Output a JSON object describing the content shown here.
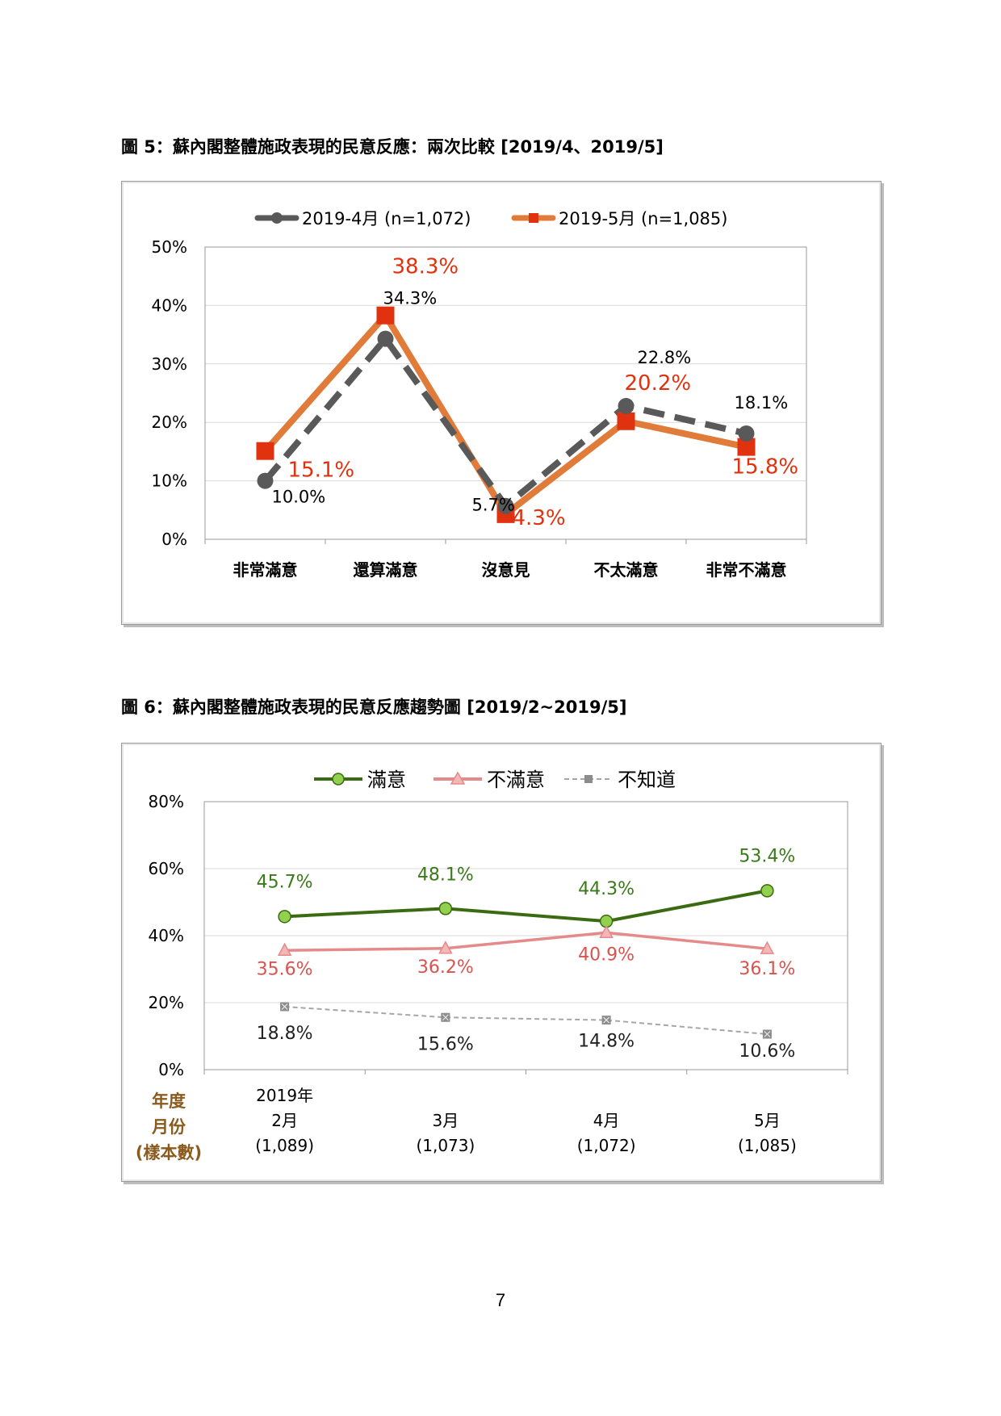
{
  "figure5": {
    "title": "圖 5：蘇內閣整體施政表現的民意反應：兩次比較 [2019/4、2019/5]"
  },
  "figure6": {
    "title": "圖 6：蘇內閣整體施政表現的民意反應趨勢圖 [2019/2~2019/5]"
  },
  "page_number": "7",
  "chart_data": [
    {
      "type": "line",
      "categories": [
        "非常滿意",
        "還算滿意",
        "沒意見",
        "不太滿意",
        "非常不滿意"
      ],
      "series": [
        {
          "name": "2019-4月 (n=1,072)",
          "values": [
            10.0,
            34.3,
            5.7,
            22.8,
            18.1
          ],
          "labels": [
            "10.0%",
            "34.3%",
            "5.7%",
            "22.8%",
            "18.1%"
          ],
          "color": "#595959",
          "dash": true,
          "marker": "circle"
        },
        {
          "name": "2019-5月 (n=1,085)",
          "values": [
            15.1,
            38.3,
            4.3,
            20.2,
            15.8
          ],
          "labels": [
            "15.1%",
            "38.3%",
            "4.3%",
            "20.2%",
            "15.8%"
          ],
          "color": "#e07b39",
          "marker_color": "#e0320f",
          "label_color": "#e0320f",
          "dash": false,
          "marker": "square"
        }
      ],
      "yticks": [
        "0%",
        "10%",
        "20%",
        "30%",
        "40%",
        "50%"
      ],
      "ylim": [
        0,
        50
      ],
      "legend": "top-center",
      "grid": true
    },
    {
      "type": "line",
      "x_axis_title": [
        "年度",
        "月份",
        "(樣本數)"
      ],
      "categories": [
        [
          "2019年",
          "2月",
          "(1,089)"
        ],
        [
          "3月",
          "(1,073)"
        ],
        [
          "4月",
          "(1,072)"
        ],
        [
          "5月",
          "(1,085)"
        ]
      ],
      "series": [
        {
          "name": "滿意",
          "values": [
            45.7,
            48.1,
            44.3,
            53.4
          ],
          "labels": [
            "45.7%",
            "48.1%",
            "44.3%",
            "53.4%"
          ],
          "color": "#3a6b12",
          "marker_fill": "#92d050",
          "label_color": "#3a7a1a",
          "marker": "circle"
        },
        {
          "name": "不滿意",
          "values": [
            35.6,
            36.2,
            40.9,
            36.1
          ],
          "labels": [
            "35.6%",
            "36.2%",
            "40.9%",
            "36.1%"
          ],
          "color": "#e58a8a",
          "marker_fill": "#f4b6b6",
          "label_color": "#d9534f",
          "marker": "triangle"
        },
        {
          "name": "不知道",
          "values": [
            18.8,
            15.6,
            14.8,
            10.6
          ],
          "labels": [
            "18.8%",
            "15.6%",
            "14.8%",
            "10.6%"
          ],
          "color": "#a6a6a6",
          "marker_fill": "#8c8c8c",
          "label_color": "#222222",
          "dash": true,
          "marker": "x-square"
        }
      ],
      "yticks": [
        "0%",
        "20%",
        "40%",
        "60%",
        "80%"
      ],
      "ylim": [
        0,
        80
      ],
      "legend": "top-center",
      "grid": true
    }
  ]
}
